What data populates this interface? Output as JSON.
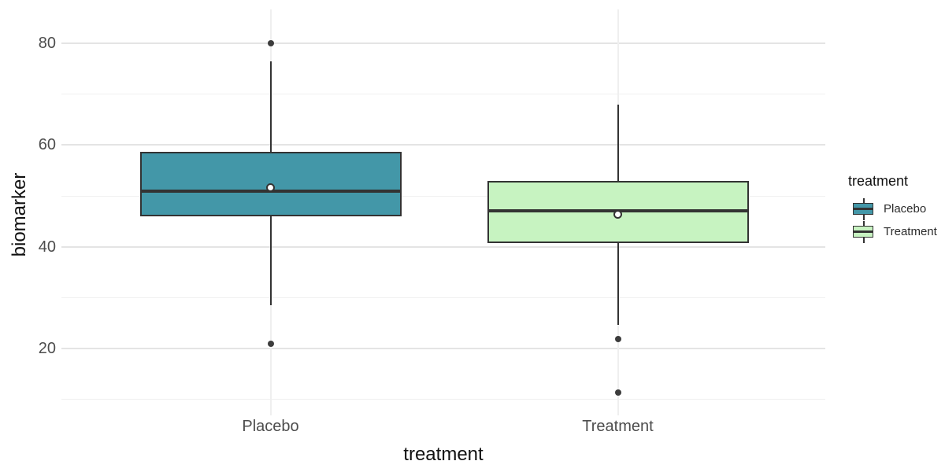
{
  "legend": {
    "title": "treatment"
  },
  "chart_data": {
    "type": "boxplot",
    "orientation": "vertical",
    "title": "",
    "xlabel": "treatment",
    "ylabel": "biomarker",
    "categories": [
      "Placebo",
      "Treatment"
    ],
    "y_ticks": [
      20,
      40,
      60,
      80
    ],
    "y_minor_ticks": [
      10,
      30,
      50,
      70
    ],
    "ylim": [
      7.5,
      86.5
    ],
    "grid": true,
    "legend_position": "right",
    "series": [
      {
        "name": "Placebo",
        "fill": "#4397a8",
        "whisker_low": 28.5,
        "q1": 46,
        "median": 51,
        "q3": 58.6,
        "whisker_high": 76.5,
        "mean": 51.6,
        "outliers": [
          80,
          21
        ]
      },
      {
        "name": "Treatment",
        "fill": "#c7f3c1",
        "whisker_low": 24.6,
        "q1": 40.7,
        "median": 47,
        "q3": 52.9,
        "whisker_high": 68,
        "mean": 46.3,
        "outliers": [
          21.8,
          11.3
        ]
      }
    ],
    "style": {
      "line_color": "#333333",
      "outlier_color": "#3c3c3c",
      "grid_major_color": "#e4e4e4",
      "grid_minor_color": "#f0f0f0",
      "background": "#ffffff"
    }
  }
}
